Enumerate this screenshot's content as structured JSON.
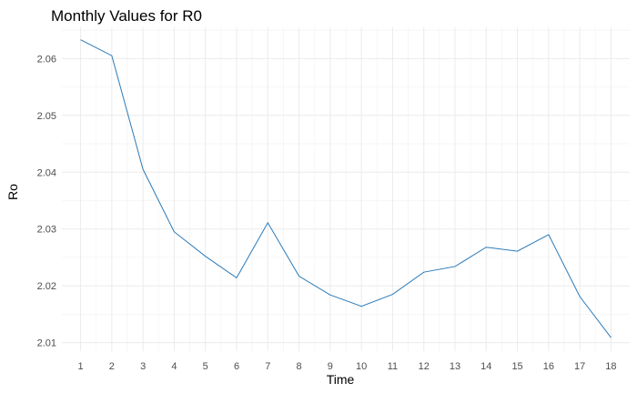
{
  "chart_data": {
    "type": "line",
    "title": "Monthly Values for R0",
    "xlabel": "Time",
    "ylabel": "Ro",
    "x": [
      1,
      2,
      3,
      4,
      5,
      6,
      7,
      8,
      9,
      10,
      11,
      12,
      13,
      14,
      15,
      16,
      17,
      18
    ],
    "series": [
      {
        "values": [
          2.0633,
          2.0605,
          2.0405,
          2.0295,
          2.0252,
          2.0214,
          2.0311,
          2.0217,
          2.0184,
          2.0164,
          2.0185,
          2.0224,
          2.0234,
          2.0268,
          2.0261,
          2.029,
          2.0181,
          2.0109
        ],
        "color": "#2b7bba"
      }
    ],
    "xlim": [
      0.4,
      18.6
    ],
    "ylim": [
      2.0085,
      2.0655
    ],
    "x_ticks": [
      1,
      2,
      3,
      4,
      5,
      6,
      7,
      8,
      9,
      10,
      11,
      12,
      13,
      14,
      15,
      16,
      17,
      18
    ],
    "y_ticks": [
      2.01,
      2.02,
      2.03,
      2.04,
      2.05,
      2.06
    ],
    "x_tick_labels": [
      "1",
      "2",
      "3",
      "4",
      "5",
      "6",
      "7",
      "8",
      "9",
      "10",
      "11",
      "12",
      "13",
      "14",
      "15",
      "16",
      "17",
      "18"
    ],
    "y_tick_labels": [
      "2.01",
      "2.02",
      "2.03",
      "2.04",
      "2.05",
      "2.06"
    ],
    "grid": true,
    "legend": "none"
  }
}
